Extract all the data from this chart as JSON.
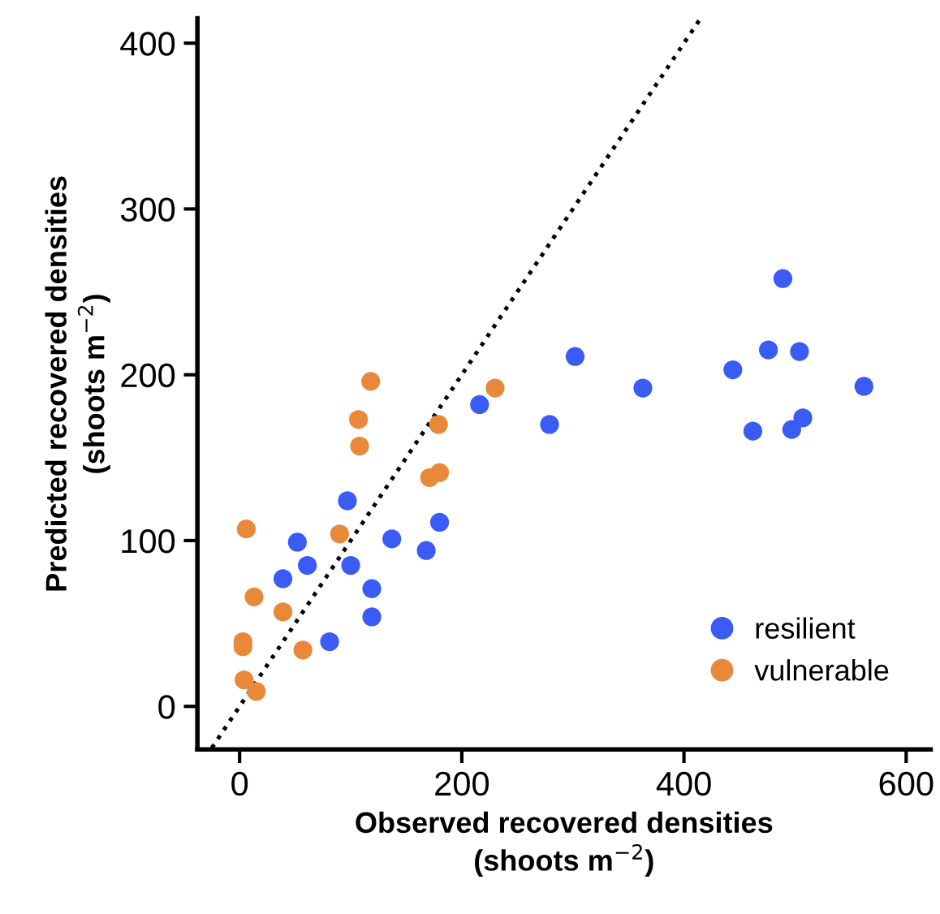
{
  "chart_data": {
    "type": "scatter",
    "xlabel": "Observed recovered densities\n(shoots m$^{−2}$)",
    "ylabel": "Predicted recovered densities\n(shoots m$^{−2}$)",
    "xlim": [
      -38,
      622
    ],
    "ylim": [
      -26,
      415
    ],
    "xticks": [
      0,
      200,
      400,
      600
    ],
    "yticks": [
      0,
      100,
      200,
      300,
      400
    ],
    "grid": false,
    "legend": "bottom right",
    "marker": "circle",
    "series": [
      {
        "name": "resilient",
        "color": "#3a5cf5",
        "x": [
          216,
          97,
          52,
          61,
          39,
          137,
          100,
          180,
          168,
          119,
          119,
          81,
          302,
          279,
          363,
          489,
          476,
          504,
          444,
          562,
          462,
          497,
          507
        ],
        "values": [
          182,
          124,
          99,
          85,
          77,
          101,
          85,
          111,
          94,
          71,
          54,
          39,
          211,
          170,
          192,
          258,
          215,
          214,
          203,
          193,
          166,
          167,
          174
        ]
      },
      {
        "name": "vulnerable",
        "color": "#e8893a",
        "x": [
          118,
          107,
          108,
          179,
          171,
          180,
          230,
          6,
          90,
          13,
          39,
          3,
          3,
          57,
          4,
          15
        ],
        "values": [
          196,
          173,
          157,
          170,
          138,
          141,
          192,
          107,
          104,
          66,
          57,
          39,
          36,
          34,
          16,
          9
        ]
      },
      {
        "type": "line",
        "color": "#000000",
        "line_style": "dotted",
        "marker": "none",
        "x": [
          -25,
          415
        ],
        "values": [
          -25,
          415
        ]
      }
    ]
  }
}
